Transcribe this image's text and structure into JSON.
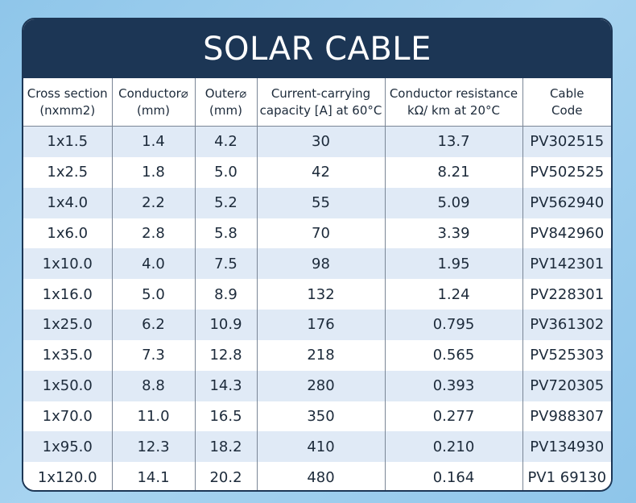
{
  "title": "SOLAR CABLE",
  "columns": [
    {
      "line1": "Cross section",
      "line2": "(nxmm2)"
    },
    {
      "line1": "Conductor⌀",
      "line2": "(mm)"
    },
    {
      "line1": "Outer⌀",
      "line2": "(mm)"
    },
    {
      "line1": "Current-carrying",
      "line2": "capacity [A] at 60°C"
    },
    {
      "line1": "Conductor resistance",
      "line2": "kΩ/ km at 20°C"
    },
    {
      "line1": "Cable",
      "line2": "Code"
    }
  ],
  "rows": [
    [
      "1x1.5",
      "1.4",
      "4.2",
      "30",
      "13.7",
      "PV302515"
    ],
    [
      "1x2.5",
      "1.8",
      "5.0",
      "42",
      "8.21",
      "PV502525"
    ],
    [
      "1x4.0",
      "2.2",
      "5.2",
      "55",
      "5.09",
      "PV562940"
    ],
    [
      "1x6.0",
      "2.8",
      "5.8",
      "70",
      "3.39",
      "PV842960"
    ],
    [
      "1x10.0",
      "4.0",
      "7.5",
      "98",
      "1.95",
      "PV142301"
    ],
    [
      "1x16.0",
      "5.0",
      "8.9",
      "132",
      "1.24",
      "PV228301"
    ],
    [
      "1x25.0",
      "6.2",
      "10.9",
      "176",
      "0.795",
      "PV361302"
    ],
    [
      "1x35.0",
      "7.3",
      "12.8",
      "218",
      "0.565",
      "PV525303"
    ],
    [
      "1x50.0",
      "8.8",
      "14.3",
      "280",
      "0.393",
      "PV720305"
    ],
    [
      "1x70.0",
      "11.0",
      "16.5",
      "350",
      "0.277",
      "PV988307"
    ],
    [
      "1x95.0",
      "12.3",
      "18.2",
      "410",
      "0.210",
      "PV134930"
    ],
    [
      "1x120.0",
      "14.1",
      "20.2",
      "480",
      "0.164",
      "PV1 69130"
    ]
  ]
}
